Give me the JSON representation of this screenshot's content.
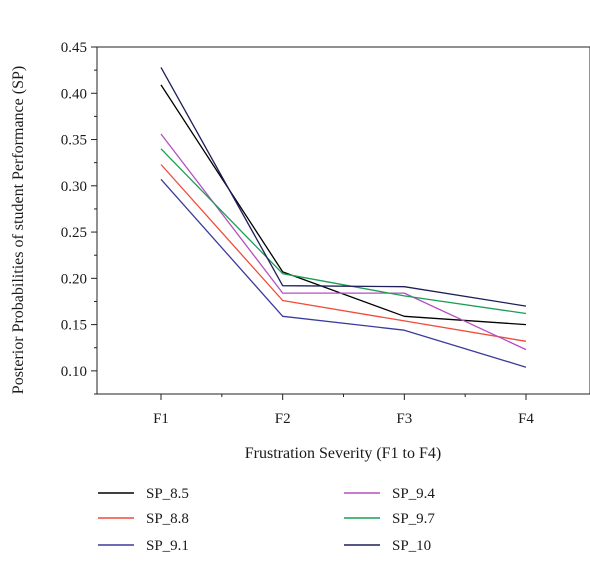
{
  "chart_data": {
    "type": "line",
    "xlabel": "Frustration Severity (F1 to F4)",
    "ylabel": "Posterior Probabilities of student Performance (SP)",
    "categories": [
      "F1",
      "F2",
      "F3",
      "F4"
    ],
    "ylim": [
      0.075,
      0.45
    ],
    "yticks": [
      0.1,
      0.15,
      0.2,
      0.25,
      0.3,
      0.35,
      0.4,
      0.45
    ],
    "grid": false,
    "legend_position": "bottom",
    "series": [
      {
        "name": "SP_8.5",
        "color": "#000000",
        "values": [
          0.409,
          0.207,
          0.159,
          0.15
        ]
      },
      {
        "name": "SP_8.8",
        "color": "#f04a3a",
        "values": [
          0.323,
          0.176,
          0.154,
          0.132
        ]
      },
      {
        "name": "SP_9.1",
        "color": "#3b3b9e",
        "values": [
          0.307,
          0.159,
          0.144,
          0.104
        ]
      },
      {
        "name": "SP_9.4",
        "color": "#b44fc0",
        "values": [
          0.356,
          0.184,
          0.184,
          0.123
        ]
      },
      {
        "name": "SP_9.7",
        "color": "#1a9e55",
        "values": [
          0.34,
          0.205,
          0.181,
          0.162
        ]
      },
      {
        "name": "SP_10",
        "color": "#1e1e5a",
        "values": [
          0.428,
          0.192,
          0.191,
          0.17
        ]
      }
    ]
  }
}
